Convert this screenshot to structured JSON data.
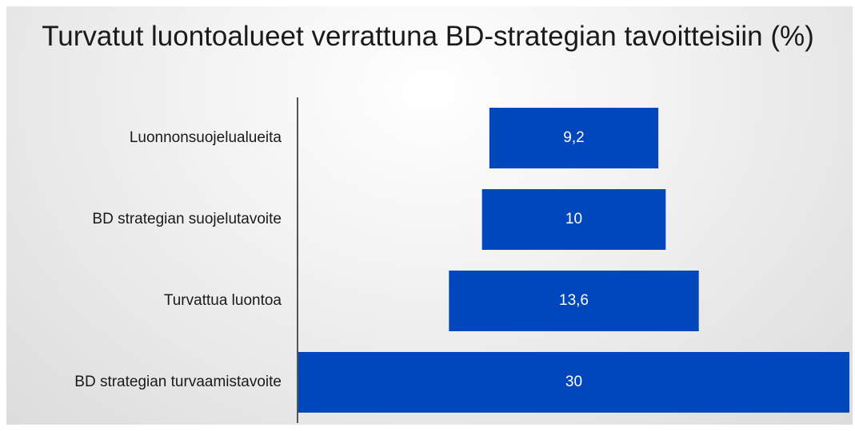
{
  "chart_data": {
    "type": "funnel",
    "title": "Turvatut luontoalueet verrattuna BD-strategian tavoitteisiin (%)",
    "categories": [
      "Luonnonsuojelualueita",
      "BD strategian suojelutavoite",
      "Turvattua luontoa",
      "BD strategian turvaamistavoite"
    ],
    "values": [
      9.2,
      10,
      13.6,
      30
    ],
    "value_labels": [
      "9,2",
      "10",
      "13,6",
      "30"
    ],
    "color": "#0047bb"
  }
}
